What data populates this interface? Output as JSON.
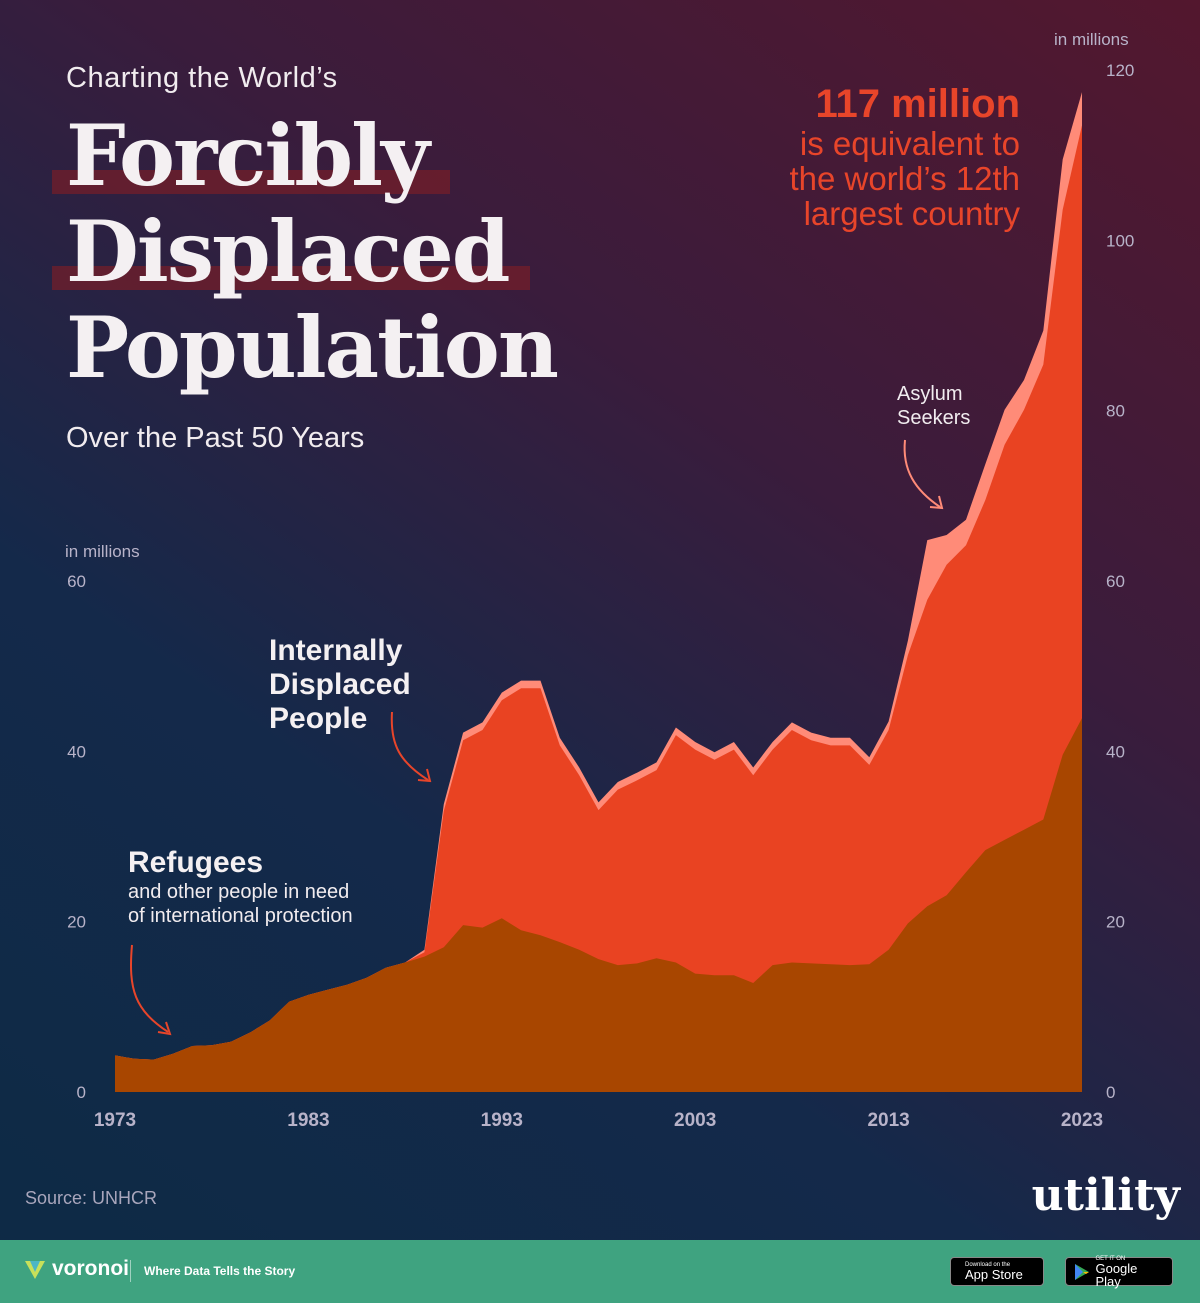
{
  "header": {
    "kicker": "Charting the World’s",
    "title_lines": [
      "Forcibly",
      "Displaced",
      "Population"
    ],
    "subtitle": "Over the Past 50 Years"
  },
  "callout": {
    "headline": "117 million",
    "text": [
      "is equivalent to",
      "the world’s 12th",
      "largest country"
    ]
  },
  "annotations": {
    "refugees_title": "Refugees",
    "refugees_sub": [
      "and other people in need",
      "of international protection"
    ],
    "idp": [
      "Internally",
      "Displaced",
      "People"
    ],
    "asylum": [
      "Asylum",
      "Seekers"
    ]
  },
  "source": "Source: UNHCR",
  "brand": "utility",
  "footer": {
    "logo": "voronoi",
    "tagline": "Where Data Tells the Story",
    "appstore_small": "Download on the",
    "appstore": "App Store",
    "google_small": "GET IT ON",
    "google": "Google Play"
  },
  "colors": {
    "refugees": "#a84600",
    "idp": "#e94322",
    "asylum": "#ff8b78",
    "accent": "#e8452a",
    "footer": "#3fa380"
  },
  "chart_data": {
    "type": "area",
    "stacked": true,
    "title": "Forcibly Displaced Population",
    "ylabel_left": "in millions",
    "ylabel_right": "in millions",
    "ylim": [
      0,
      120
    ],
    "left_ticks": [
      "0",
      "20",
      "40",
      "60"
    ],
    "right_ticks": [
      "0",
      "20",
      "40",
      "60",
      "80",
      "100",
      "120"
    ],
    "x_ticks": [
      "1973",
      "1983",
      "1993",
      "2003",
      "2013",
      "2023"
    ],
    "x": [
      1973,
      1974,
      1975,
      1976,
      1977,
      1978,
      1979,
      1980,
      1981,
      1982,
      1983,
      1984,
      1985,
      1986,
      1987,
      1988,
      1989,
      1990,
      1991,
      1992,
      1993,
      1994,
      1995,
      1996,
      1997,
      1998,
      1999,
      2000,
      2001,
      2002,
      2003,
      2004,
      2005,
      2006,
      2007,
      2008,
      2009,
      2010,
      2011,
      2012,
      2013,
      2014,
      2015,
      2016,
      2017,
      2018,
      2019,
      2020,
      2021,
      2022,
      2023
    ],
    "series": [
      {
        "name": "Refugees",
        "values": [
          4.3,
          3.9,
          3.8,
          4.5,
          5.4,
          5.5,
          5.9,
          7.0,
          8.4,
          10.6,
          11.4,
          12.0,
          12.6,
          13.4,
          14.6,
          15.2,
          15.9,
          17.0,
          19.6,
          19.3,
          20.4,
          19.0,
          18.4,
          17.6,
          16.7,
          15.6,
          14.9,
          15.1,
          15.7,
          15.2,
          13.9,
          13.7,
          13.7,
          12.8,
          14.9,
          15.2,
          15.1,
          15.0,
          14.9,
          15.0,
          16.7,
          19.8,
          21.8,
          23.1,
          25.8,
          28.4,
          29.6,
          30.8,
          32.0,
          39.6,
          43.9
        ]
      },
      {
        "name": "Internally Displaced People",
        "values": [
          0,
          0,
          0,
          0,
          0,
          0,
          0,
          0,
          0,
          0,
          0,
          0,
          0,
          0,
          0,
          0,
          0.5,
          16.0,
          21.7,
          23.2,
          25.6,
          28.4,
          29.0,
          23.1,
          20.5,
          17.5,
          20.6,
          21.5,
          22.1,
          26.7,
          26.3,
          25.3,
          26.5,
          24.4,
          25.3,
          27.3,
          26.2,
          25.7,
          25.8,
          23.4,
          25.8,
          31.5,
          36.0,
          38.8,
          38.4,
          41.1,
          46.4,
          49.3,
          53.4,
          64.0,
          69.6
        ]
      },
      {
        "name": "Asylum Seekers",
        "values": [
          0,
          0,
          0,
          0,
          0,
          0,
          0,
          0,
          0,
          0,
          0,
          0,
          0,
          0,
          0,
          0,
          0.3,
          0.8,
          0.9,
          0.9,
          0.9,
          0.9,
          0.9,
          0.9,
          0.9,
          0.9,
          0.9,
          0.9,
          0.9,
          0.9,
          0.9,
          0.9,
          0.9,
          0.9,
          0.9,
          0.9,
          0.9,
          0.9,
          0.9,
          0.9,
          1.0,
          1.7,
          7.0,
          3.5,
          3.0,
          4.2,
          4.1,
          3.5,
          4.0,
          5.9,
          3.9
        ]
      }
    ]
  }
}
